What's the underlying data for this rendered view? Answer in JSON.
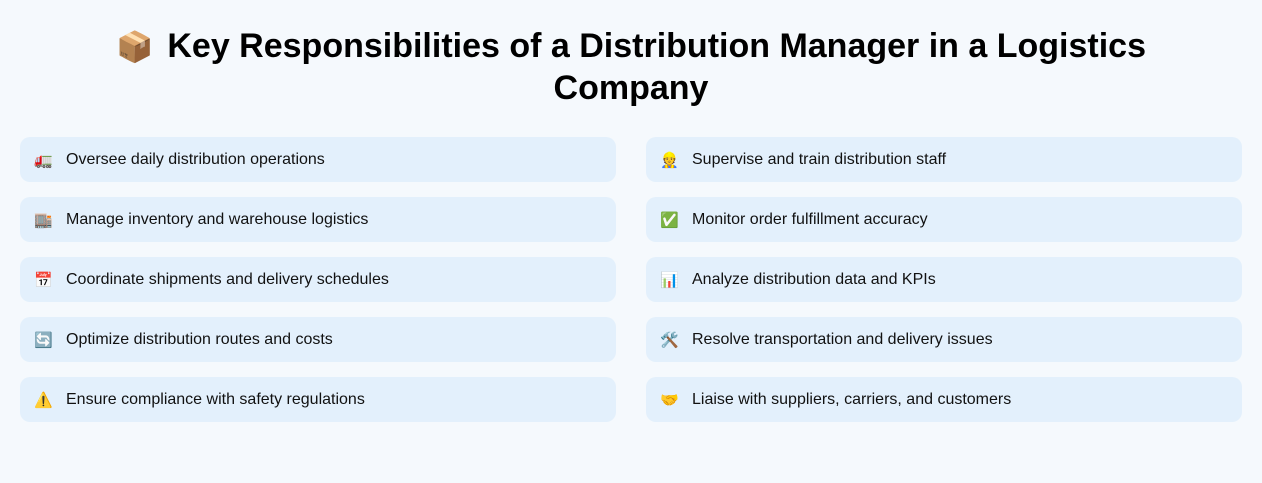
{
  "header": {
    "icon": "📦",
    "icon_name": "package-icon",
    "title": "Key Responsibilities of a Distribution Manager in a Logistics Company"
  },
  "colors": {
    "background": "#f5f9fd",
    "card_background": "#e3f0fc",
    "text": "#111111"
  },
  "responsibilities": [
    {
      "icon": "🚛",
      "icon_name": "truck-icon",
      "label": "Oversee daily distribution operations"
    },
    {
      "icon": "👷",
      "icon_name": "construction-worker-icon",
      "label": "Supervise and train distribution staff"
    },
    {
      "icon": "🏬",
      "icon_name": "department-store-icon",
      "label": "Manage inventory and warehouse logistics"
    },
    {
      "icon": "✅",
      "icon_name": "check-mark-icon",
      "label": "Monitor order fulfillment accuracy"
    },
    {
      "icon": "📅",
      "icon_name": "calendar-icon",
      "label": "Coordinate shipments and delivery schedules"
    },
    {
      "icon": "📊",
      "icon_name": "bar-chart-icon",
      "label": "Analyze distribution data and KPIs"
    },
    {
      "icon": "🔄",
      "icon_name": "refresh-arrows-icon",
      "label": "Optimize distribution routes and costs"
    },
    {
      "icon": "🛠️",
      "icon_name": "hammer-wrench-icon",
      "label": "Resolve transportation and delivery issues"
    },
    {
      "icon": "⚠️",
      "icon_name": "warning-icon",
      "label": "Ensure compliance with safety regulations"
    },
    {
      "icon": "🤝",
      "icon_name": "handshake-icon",
      "label": "Liaise with suppliers, carriers, and customers"
    }
  ]
}
